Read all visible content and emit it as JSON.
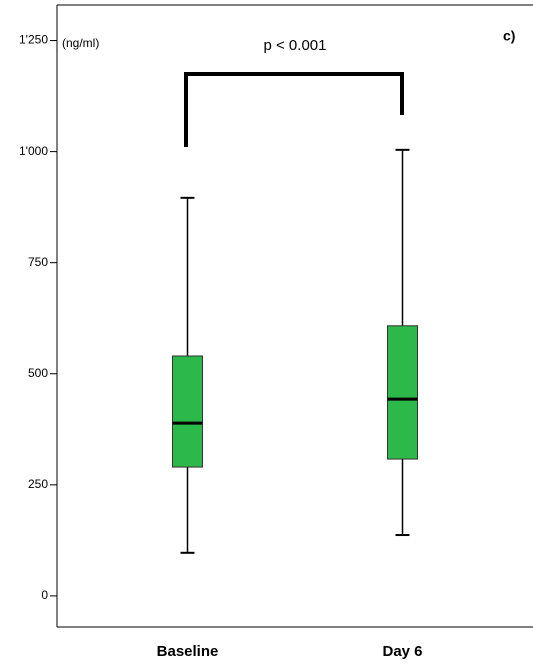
{
  "chart_data": {
    "type": "box",
    "y_unit_label": "(ng/ml)",
    "annotation": "p < 0.001",
    "panel_label": "c)",
    "categories": [
      "Baseline",
      "Day 6"
    ],
    "min": [
      97,
      137
    ],
    "q1": [
      290,
      308
    ],
    "median": [
      389,
      443
    ],
    "q3": [
      540,
      608
    ],
    "max": [
      896,
      1004
    ],
    "color": "#2db84a",
    "ylim": [
      -70,
      1330
    ],
    "yticks": [
      0,
      250,
      500,
      750,
      {
        "value": 1000,
        "label": "1'000"
      },
      {
        "value": 1250,
        "label": "1'250"
      }
    ],
    "grid": false
  }
}
